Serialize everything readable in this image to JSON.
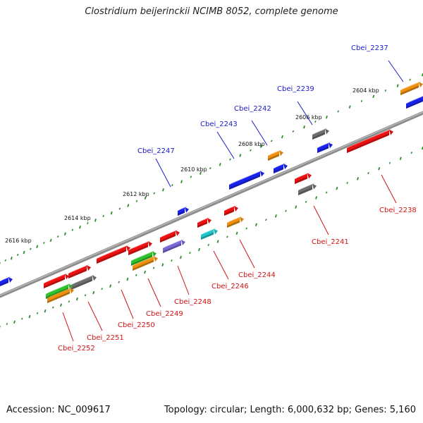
{
  "title": "Clostridium beijerinckii NCIMB 8052, complete genome",
  "footer": {
    "accession": "Accession: NC_009617",
    "summary": "Topology: circular; Length: 6,000,632 bp; Genes: 5,160"
  },
  "colors": {
    "backbone": "#8c8c8c",
    "tick": "#2e8b2e",
    "label_forward": "#1a1acc",
    "label_reverse": "#d21414",
    "red": "#ee1111",
    "blue": "#1a22ee",
    "orange": "#f0900e",
    "gray": "#6e6e6e",
    "green": "#2fc22f",
    "cyan": "#1fc8cc",
    "purple": "#7a66d6"
  },
  "scale_labels": [
    "2604 kbp",
    "2606 kbp",
    "2608 kbp",
    "2610 kbp",
    "2612 kbp",
    "2614 kbp",
    "2616 kbp"
  ],
  "gene_labels": {
    "forward": [
      "Cbei_2237",
      "Cbei_2239",
      "Cbei_2242",
      "Cbei_2243",
      "Cbei_2247"
    ],
    "reverse": [
      "Cbei_2238",
      "Cbei_2241",
      "Cbei_2244",
      "Cbei_2246",
      "Cbei_2248",
      "Cbei_2249",
      "Cbei_2250",
      "Cbei_2251",
      "Cbei_2252"
    ]
  }
}
